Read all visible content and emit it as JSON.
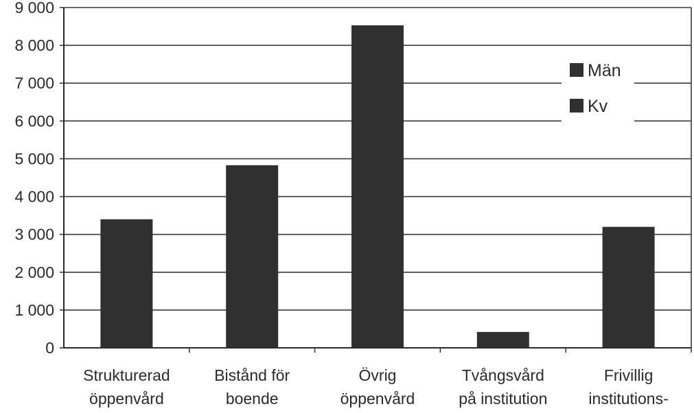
{
  "chart_data": {
    "type": "bar",
    "title": "",
    "xlabel": "",
    "ylabel": "",
    "categories": [
      [
        "Strukturerad",
        "öppenvård"
      ],
      [
        "Bistånd för",
        "boende"
      ],
      [
        "Övrig",
        "öppenvård"
      ],
      [
        "Tvångsvård",
        "på institution"
      ],
      [
        "Frivillig",
        "institutions-"
      ]
    ],
    "series": [
      {
        "name": "Män",
        "values": [
          3400,
          4830,
          8530,
          420,
          3200
        ],
        "color": "#303030"
      },
      {
        "name": "Kv",
        "values": [
          null,
          null,
          null,
          null,
          null
        ],
        "color": "#303030"
      }
    ],
    "ylim": [
      0,
      9000
    ],
    "yticks": [
      0,
      1000,
      2000,
      3000,
      4000,
      5000,
      6000,
      7000,
      8000,
      9000
    ],
    "ytick_labels": [
      "0",
      "1 000",
      "2 000",
      "3 000",
      "4 000",
      "5 000",
      "6 000",
      "7 000",
      "8 000",
      "9 000"
    ],
    "grid": true,
    "legend": "top-right"
  }
}
